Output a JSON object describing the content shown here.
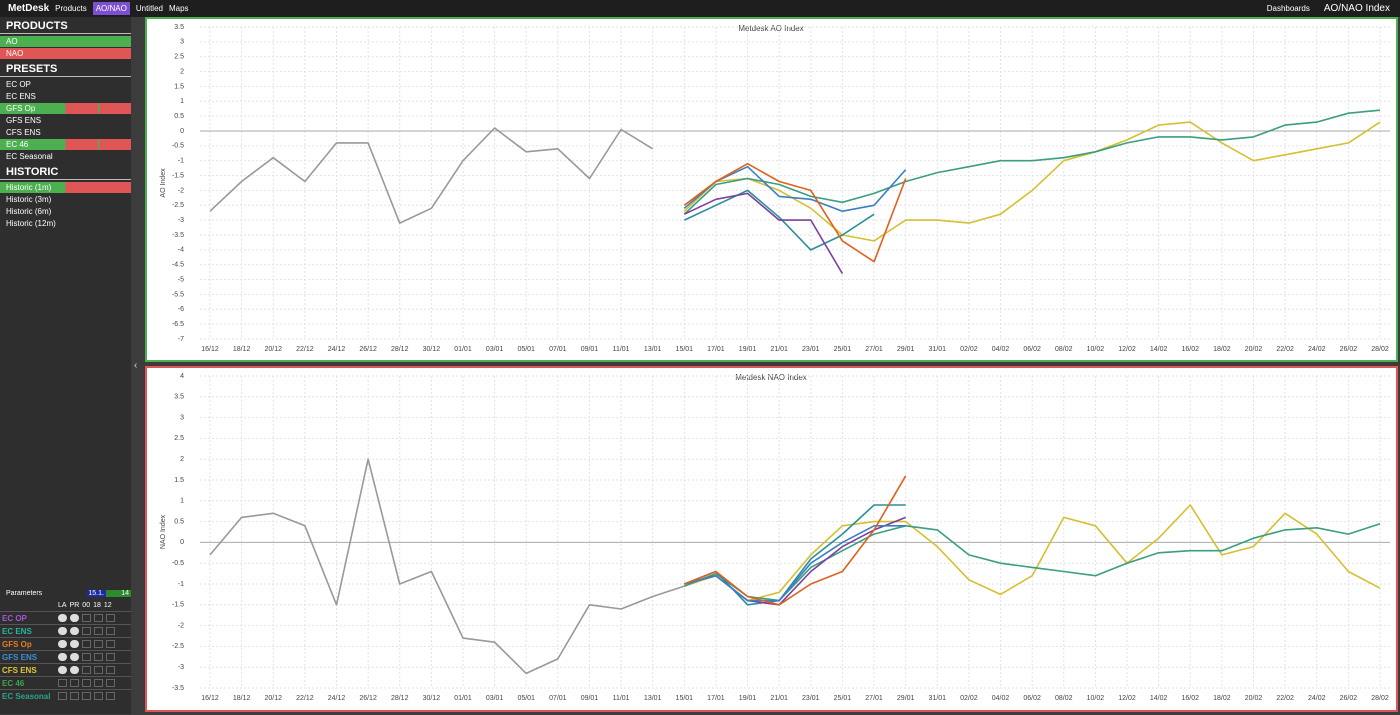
{
  "topbar": {
    "logo": "MetDesk",
    "products": "Products",
    "tab": "AO/NAO",
    "untitled": "Untitled",
    "maps": "Maps",
    "dashboards": "Dashboards",
    "page_title": "AO/NAO Index"
  },
  "sidebar": {
    "sections": [
      {
        "title": "PRODUCTS",
        "items": [
          "AO",
          "NAO"
        ]
      },
      {
        "title": "PRESETS",
        "items": [
          "EC OP",
          "EC ENS",
          "GFS Op",
          "GFS ENS",
          "CFS ENS",
          "EC 46",
          "EC Seasonal"
        ]
      },
      {
        "title": "HISTORIC",
        "items": [
          "Historic (1m)",
          "Historic (3m)",
          "Historic (6m)",
          "Historic (12m)"
        ]
      }
    ]
  },
  "parameters": {
    "label": "Parameters",
    "date": "15.1.",
    "hour": "14",
    "columns": [
      "LA",
      "PR",
      "00",
      "18",
      "12"
    ],
    "rows": [
      "EC OP",
      "EC ENS",
      "GFS Op",
      "GFS ENS",
      "CFS ENS",
      "EC 46",
      "EC Seasonal"
    ]
  },
  "chart_data": [
    {
      "type": "line",
      "title": "Metdesk AO Index",
      "y_label": "AO Index",
      "categories": [
        "16/12",
        "18/12",
        "20/12",
        "22/12",
        "24/12",
        "26/12",
        "28/12",
        "30/12",
        "01/01",
        "03/01",
        "05/01",
        "07/01",
        "09/01",
        "11/01",
        "13/01",
        "15/01",
        "17/01",
        "19/01",
        "21/01",
        "23/01",
        "25/01",
        "27/01",
        "29/01",
        "31/01",
        "02/02",
        "04/02",
        "06/02",
        "08/02",
        "10/02",
        "12/02",
        "14/02",
        "16/02",
        "18/02",
        "20/02",
        "22/02",
        "24/02",
        "26/02",
        "28/02"
      ],
      "ylim": [
        -7,
        3.5
      ],
      "yticks": [
        3.5,
        3,
        2.5,
        2,
        1.5,
        1,
        0.5,
        0,
        -0.5,
        -1,
        -1.5,
        -2,
        -2.5,
        -3,
        -3.5,
        -4,
        -4.5,
        -5,
        -5.5,
        -6,
        -6.5,
        -7
      ],
      "grid": true,
      "series": [
        {
          "color": "#999999",
          "values": [
            -2.7,
            -1.7,
            -0.9,
            -1.7,
            -0.4,
            -0.4,
            -3.1,
            -2.6,
            -1.0,
            0.1,
            -0.7,
            -0.6,
            -1.6,
            0.05,
            -0.6,
            null,
            null,
            null,
            null,
            null,
            null,
            null,
            null,
            null,
            null,
            null,
            null,
            null,
            null,
            null,
            null,
            null,
            null,
            null,
            null,
            null,
            null,
            null
          ]
        },
        {
          "color": "#d4c030",
          "values": [
            null,
            null,
            null,
            null,
            null,
            null,
            null,
            null,
            null,
            null,
            null,
            null,
            null,
            null,
            null,
            -2.7,
            -1.7,
            -1.6,
            -2.0,
            -2.6,
            -3.5,
            -3.7,
            -3.0,
            -3.0,
            -3.1,
            -2.8,
            -2.0,
            -1.0,
            -0.7,
            -0.3,
            0.2,
            0.3,
            -0.4,
            -1.0,
            -0.8,
            -0.6,
            -0.4,
            0.3
          ]
        },
        {
          "color": "#3a9e80",
          "values": [
            null,
            null,
            null,
            null,
            null,
            null,
            null,
            null,
            null,
            null,
            null,
            null,
            null,
            null,
            null,
            -2.8,
            -1.8,
            -1.6,
            -1.8,
            -2.2,
            -2.4,
            -2.1,
            -1.7,
            -1.4,
            -1.2,
            -1.0,
            -1.0,
            -0.9,
            -0.7,
            -0.4,
            -0.2,
            -0.2,
            -0.3,
            -0.2,
            0.2,
            0.3,
            0.6,
            0.7
          ]
        },
        {
          "color": "#2a8f9a",
          "values": [
            null,
            null,
            null,
            null,
            null,
            null,
            null,
            null,
            null,
            null,
            null,
            null,
            null,
            null,
            null,
            -3.0,
            -2.5,
            -2.0,
            -2.9,
            -4.0,
            -3.5,
            -2.8,
            null,
            null,
            null,
            null,
            null,
            null,
            null,
            null,
            null,
            null,
            null,
            null,
            null,
            null,
            null,
            null
          ]
        },
        {
          "color": "#7b3fa0",
          "values": [
            null,
            null,
            null,
            null,
            null,
            null,
            null,
            null,
            null,
            null,
            null,
            null,
            null,
            null,
            null,
            -2.8,
            -2.3,
            -2.1,
            -3.0,
            -3.0,
            -4.8,
            null,
            null,
            null,
            null,
            null,
            null,
            null,
            null,
            null,
            null,
            null,
            null,
            null,
            null,
            null,
            null,
            null
          ]
        },
        {
          "color": "#3a7fc4",
          "values": [
            null,
            null,
            null,
            null,
            null,
            null,
            null,
            null,
            null,
            null,
            null,
            null,
            null,
            null,
            null,
            -2.6,
            -1.7,
            -1.2,
            -2.2,
            -2.3,
            -2.7,
            -2.5,
            -1.3,
            null,
            null,
            null,
            null,
            null,
            null,
            null,
            null,
            null,
            null,
            null,
            null,
            null,
            null,
            null
          ]
        },
        {
          "color": "#e0601c",
          "values": [
            null,
            null,
            null,
            null,
            null,
            null,
            null,
            null,
            null,
            null,
            null,
            null,
            null,
            null,
            null,
            -2.5,
            -1.7,
            -1.1,
            -1.7,
            -2.0,
            -3.7,
            -4.4,
            -1.6,
            null,
            null,
            null,
            null,
            null,
            null,
            null,
            null,
            null,
            null,
            null,
            null,
            null,
            null,
            null
          ]
        }
      ]
    },
    {
      "type": "line",
      "title": "Metdesk NAO Index",
      "y_label": "NAO Index",
      "categories": [
        "16/12",
        "18/12",
        "20/12",
        "22/12",
        "24/12",
        "26/12",
        "28/12",
        "30/12",
        "01/01",
        "03/01",
        "05/01",
        "07/01",
        "09/01",
        "11/01",
        "13/01",
        "15/01",
        "17/01",
        "19/01",
        "21/01",
        "23/01",
        "25/01",
        "27/01",
        "29/01",
        "31/01",
        "02/02",
        "04/02",
        "06/02",
        "08/02",
        "10/02",
        "12/02",
        "14/02",
        "16/02",
        "18/02",
        "20/02",
        "22/02",
        "24/02",
        "26/02",
        "28/02"
      ],
      "ylim": [
        -3.5,
        4
      ],
      "yticks": [
        4,
        3.5,
        3,
        2.5,
        2,
        1.5,
        1,
        0.5,
        0,
        -0.5,
        -1,
        -1.5,
        -2,
        -2.5,
        -3,
        -3.5
      ],
      "grid": true,
      "series": [
        {
          "color": "#999999",
          "values": [
            -0.3,
            0.6,
            0.7,
            0.4,
            -1.5,
            2.0,
            -1.0,
            -0.7,
            -2.3,
            -2.4,
            -3.15,
            -2.8,
            -1.5,
            -1.6,
            -1.3,
            -1.05,
            null,
            null,
            null,
            null,
            null,
            null,
            null,
            null,
            null,
            null,
            null,
            null,
            null,
            null,
            null,
            null,
            null,
            null,
            null,
            null,
            null,
            null
          ]
        },
        {
          "color": "#d4c030",
          "values": [
            null,
            null,
            null,
            null,
            null,
            null,
            null,
            null,
            null,
            null,
            null,
            null,
            null,
            null,
            null,
            -1.05,
            -0.8,
            -1.4,
            -1.2,
            -0.3,
            0.4,
            0.5,
            0.5,
            -0.1,
            -0.9,
            -1.25,
            -0.8,
            0.6,
            0.4,
            -0.5,
            0.1,
            0.9,
            -0.3,
            -0.1,
            0.7,
            0.2,
            -0.7,
            -1.1
          ]
        },
        {
          "color": "#3a9e80",
          "values": [
            null,
            null,
            null,
            null,
            null,
            null,
            null,
            null,
            null,
            null,
            null,
            null,
            null,
            null,
            null,
            -1.05,
            -0.75,
            -1.3,
            -1.4,
            -0.6,
            -0.2,
            0.2,
            0.4,
            0.3,
            -0.3,
            -0.5,
            -0.6,
            -0.7,
            -0.8,
            -0.5,
            -0.25,
            -0.2,
            -0.2,
            0.1,
            0.3,
            0.35,
            0.2,
            0.45
          ]
        },
        {
          "color": "#2a8f9a",
          "values": [
            null,
            null,
            null,
            null,
            null,
            null,
            null,
            null,
            null,
            null,
            null,
            null,
            null,
            null,
            null,
            -1.0,
            -0.7,
            -1.5,
            -1.4,
            -0.4,
            0.2,
            0.9,
            0.9,
            null,
            null,
            null,
            null,
            null,
            null,
            null,
            null,
            null,
            null,
            null,
            null,
            null,
            null,
            null
          ]
        },
        {
          "color": "#7b3fa0",
          "values": [
            null,
            null,
            null,
            null,
            null,
            null,
            null,
            null,
            null,
            null,
            null,
            null,
            null,
            null,
            null,
            -1.0,
            -0.8,
            -1.4,
            -1.5,
            -0.7,
            -0.1,
            0.3,
            0.6,
            null,
            null,
            null,
            null,
            null,
            null,
            null,
            null,
            null,
            null,
            null,
            null,
            null,
            null,
            null
          ]
        },
        {
          "color": "#3a7fc4",
          "values": [
            null,
            null,
            null,
            null,
            null,
            null,
            null,
            null,
            null,
            null,
            null,
            null,
            null,
            null,
            null,
            -1.0,
            -0.8,
            -1.4,
            -1.4,
            -0.5,
            0.0,
            0.4,
            0.4,
            null,
            null,
            null,
            null,
            null,
            null,
            null,
            null,
            null,
            null,
            null,
            null,
            null,
            null,
            null
          ]
        },
        {
          "color": "#e0601c",
          "values": [
            null,
            null,
            null,
            null,
            null,
            null,
            null,
            null,
            null,
            null,
            null,
            null,
            null,
            null,
            null,
            -1.0,
            -0.7,
            -1.3,
            -1.5,
            -1.0,
            -0.7,
            0.3,
            1.6,
            null,
            null,
            null,
            null,
            null,
            null,
            null,
            null,
            null,
            null,
            null,
            null,
            null,
            null,
            null
          ]
        }
      ]
    }
  ]
}
